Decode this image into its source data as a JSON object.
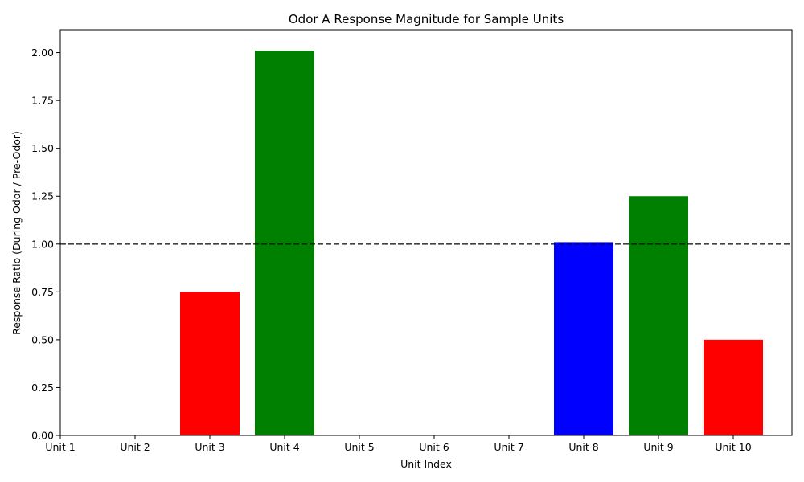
{
  "chart_data": {
    "type": "bar",
    "title": "Odor A Response Magnitude for Sample Units",
    "xlabel": "Unit Index",
    "ylabel": "Response Ratio (During Odor / Pre-Odor)",
    "categories": [
      "Unit 1",
      "Unit 2",
      "Unit 3",
      "Unit 4",
      "Unit 5",
      "Unit 6",
      "Unit 7",
      "Unit 8",
      "Unit 9",
      "Unit 10"
    ],
    "values": [
      0,
      0,
      0.75,
      2.01,
      0,
      0,
      0,
      1.01,
      1.25,
      0.5
    ],
    "bar_colors": [
      "#ff0000",
      "#ff0000",
      "#ff0000",
      "#008000",
      "#ff0000",
      "#ff0000",
      "#ff0000",
      "#0000ff",
      "#008000",
      "#ff0000"
    ],
    "ylim": [
      0,
      2.12
    ],
    "yticks": [
      "0.00",
      "0.25",
      "0.50",
      "0.75",
      "1.00",
      "1.25",
      "1.50",
      "1.75",
      "2.00"
    ],
    "reference_line": {
      "y": 1.0,
      "style": "dashed",
      "color": "#000000"
    },
    "grid": false,
    "legend": "none"
  }
}
